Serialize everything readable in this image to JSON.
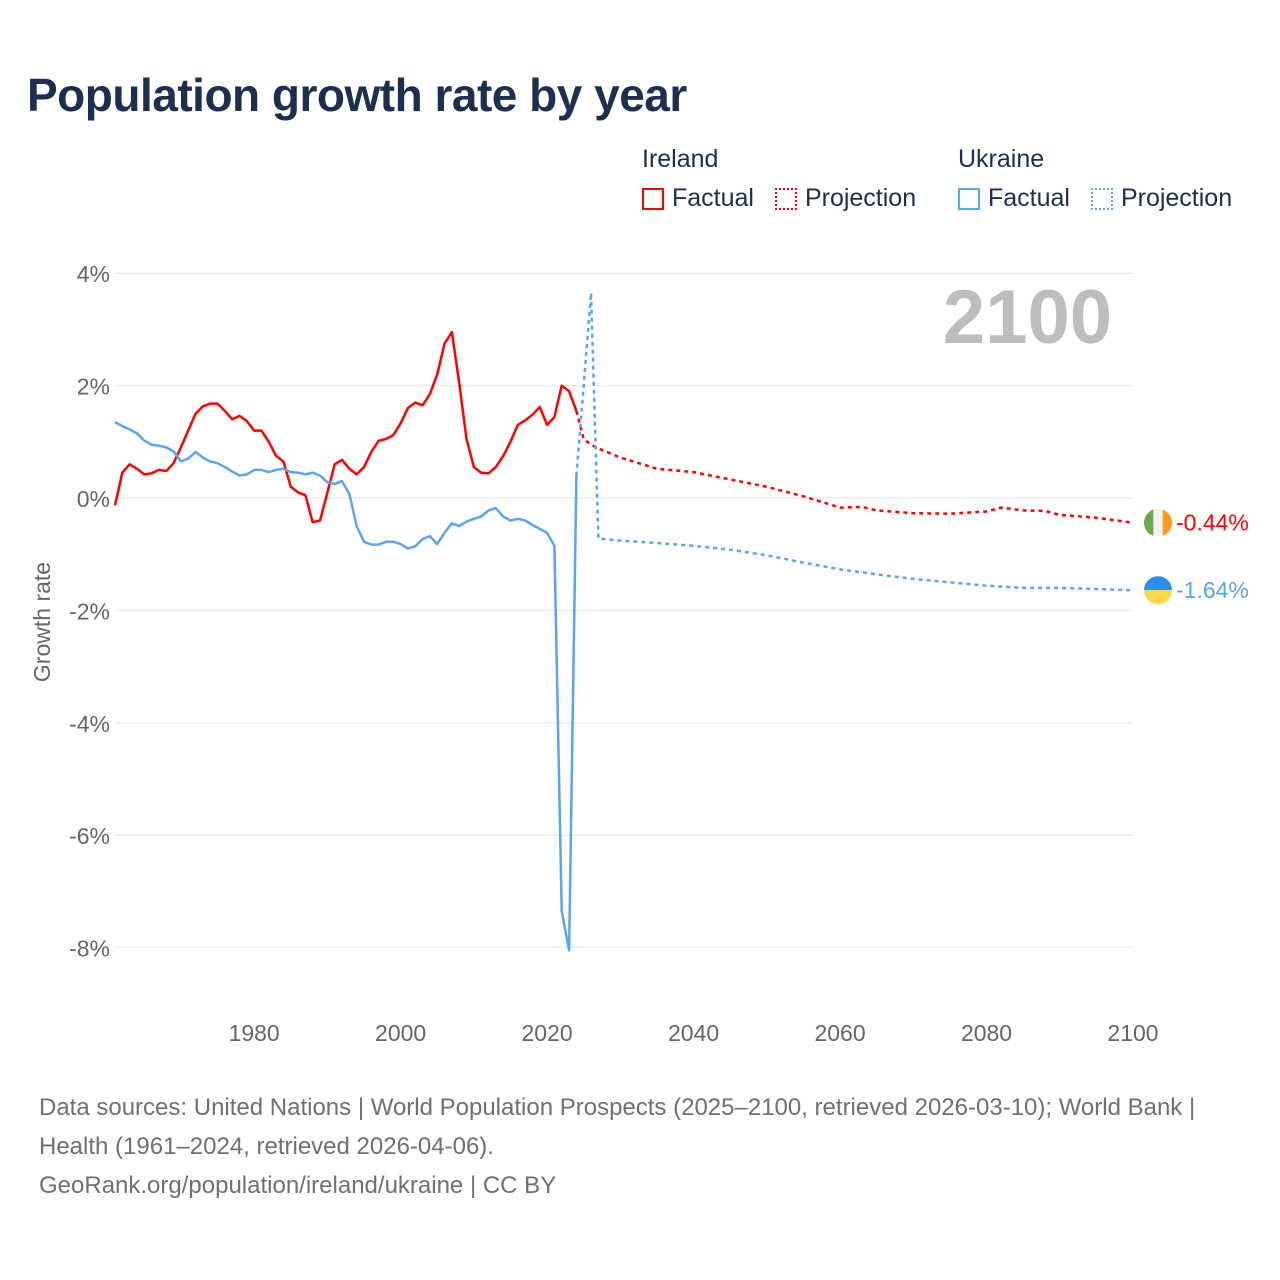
{
  "chart_data": {
    "type": "line",
    "title": "Population growth rate by year",
    "xlabel": "",
    "ylabel": "Growth rate",
    "xlim": [
      1961,
      2100
    ],
    "ylim": [
      -8,
      4
    ],
    "grid": true,
    "legend_placement": "top-right",
    "x_ticks": [
      1980,
      2000,
      2020,
      2040,
      2060,
      2080,
      2100
    ],
    "x_tick_labels": [
      "1980",
      "2000",
      "2020",
      "2040",
      "2060",
      "2080",
      "2100"
    ],
    "y_ticks": [
      4,
      2,
      0,
      -2,
      -4,
      -6,
      -8
    ],
    "y_tick_labels": [
      "4%",
      "2%",
      "0%",
      "-2%",
      "-4%",
      "-6%",
      "-8%"
    ],
    "year_annotation": "2100",
    "legend": [
      {
        "country": "Ireland",
        "items": [
          "Factual",
          "Projection"
        ],
        "color": "#ff0000"
      },
      {
        "country": "Ukraine",
        "items": [
          "Factual",
          "Projection"
        ],
        "color": "#5aa5ee"
      }
    ],
    "series": [
      {
        "name": "Ireland Factual",
        "color": "#ff0000",
        "style": "solid",
        "start_year": 1961,
        "values": [
          -0.13,
          0.45,
          0.6,
          0.52,
          0.42,
          0.44,
          0.5,
          0.48,
          0.62,
          0.9,
          1.2,
          1.5,
          1.63,
          1.68,
          1.68,
          1.55,
          1.4,
          1.46,
          1.37,
          1.2,
          1.2,
          1.0,
          0.75,
          0.65,
          0.2,
          0.1,
          0.05,
          -0.43,
          -0.4,
          0.1,
          0.6,
          0.68,
          0.52,
          0.42,
          0.55,
          0.82,
          1.02,
          1.05,
          1.12,
          1.33,
          1.6,
          1.7,
          1.65,
          1.85,
          2.2,
          2.75,
          2.95,
          2.05,
          1.05,
          0.55,
          0.45,
          0.44,
          0.55,
          0.75,
          1.0,
          1.3,
          1.38,
          1.48,
          1.62,
          1.3,
          1.44,
          2.0,
          1.9,
          1.55
        ]
      },
      {
        "name": "Ireland Projection",
        "color": "#ff0000",
        "style": "dotted",
        "x": [
          2024,
          2025,
          2026,
          2027,
          2030,
          2035,
          2040,
          2045,
          2050,
          2055,
          2060,
          2063,
          2065,
          2070,
          2075,
          2080,
          2082,
          2085,
          2088,
          2090,
          2095,
          2100
        ],
        "values": [
          1.55,
          1.05,
          0.95,
          0.88,
          0.72,
          0.52,
          0.46,
          0.33,
          0.2,
          0.03,
          -0.17,
          -0.16,
          -0.22,
          -0.27,
          -0.28,
          -0.24,
          -0.17,
          -0.22,
          -0.23,
          -0.3,
          -0.35,
          -0.44
        ]
      },
      {
        "name": "Ukraine Factual",
        "color": "#5aa5ee",
        "style": "solid",
        "start_year": 1961,
        "values": [
          1.35,
          1.28,
          1.22,
          1.15,
          1.02,
          0.95,
          0.93,
          0.9,
          0.83,
          0.65,
          0.7,
          0.82,
          0.72,
          0.65,
          0.62,
          0.55,
          0.47,
          0.4,
          0.42,
          0.5,
          0.5,
          0.46,
          0.5,
          0.52,
          0.46,
          0.45,
          0.42,
          0.45,
          0.4,
          0.28,
          0.25,
          0.3,
          0.07,
          -0.5,
          -0.78,
          -0.83,
          -0.83,
          -0.78,
          -0.78,
          -0.82,
          -0.9,
          -0.86,
          -0.73,
          -0.68,
          -0.82,
          -0.62,
          -0.45,
          -0.5,
          -0.42,
          -0.37,
          -0.33,
          -0.22,
          -0.18,
          -0.33,
          -0.4,
          -0.37,
          -0.4,
          -0.48,
          -0.55,
          -0.62,
          -0.85,
          -7.35,
          -8.05,
          0.4
        ]
      },
      {
        "name": "Ukraine Projection",
        "color": "#5aa5ee",
        "style": "dotted",
        "x": [
          2024,
          2025,
          2026,
          2027,
          2030,
          2035,
          2040,
          2045,
          2050,
          2055,
          2060,
          2065,
          2070,
          2075,
          2080,
          2085,
          2090,
          2095,
          2100
        ],
        "values": [
          0.4,
          2.0,
          3.65,
          -0.72,
          -0.76,
          -0.8,
          -0.85,
          -0.92,
          -1.02,
          -1.15,
          -1.27,
          -1.36,
          -1.44,
          -1.5,
          -1.56,
          -1.6,
          -1.6,
          -1.62,
          -1.64
        ]
      }
    ],
    "end_labels": [
      {
        "country": "Ireland",
        "text": "-0.44%",
        "value": -0.44,
        "color": "#ff0000",
        "flag": "ireland-flag"
      },
      {
        "country": "Ukraine",
        "text": "-1.64%",
        "value": -1.64,
        "color": "#5aa5ee",
        "flag": "ukraine-flag"
      }
    ]
  },
  "source": {
    "line1": "Data sources: United Nations | World Population Prospects (2025–2100, retrieved 2026-03-10); World Bank | Health (1961–2024, retrieved 2026-04-06).",
    "line2": "GeoRank.org/population/ireland/ukraine | CC BY"
  }
}
